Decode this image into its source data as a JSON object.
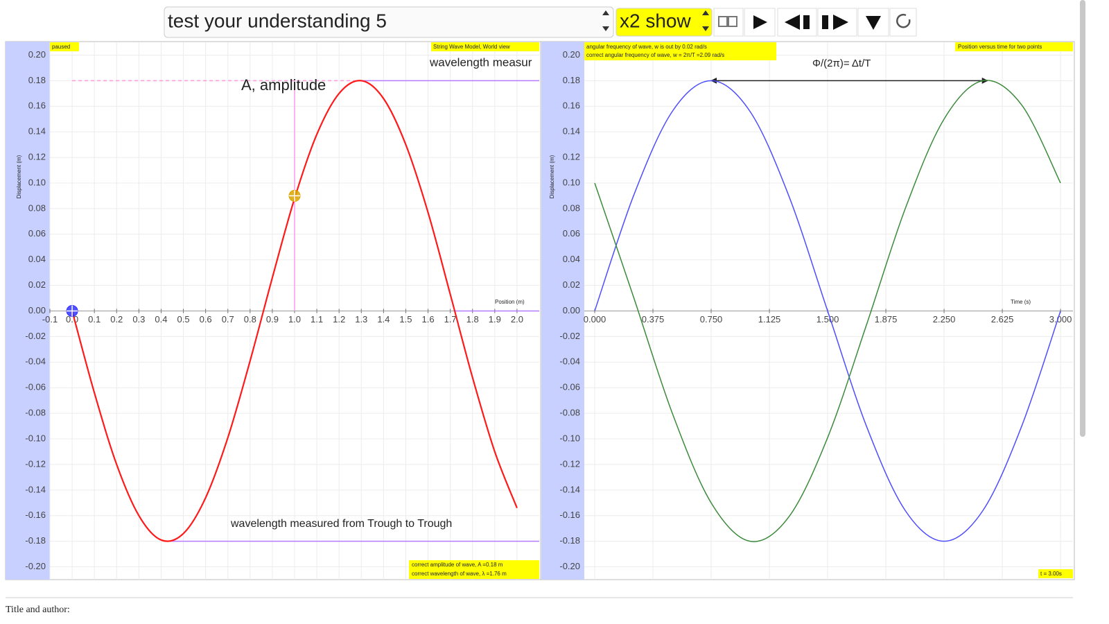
{
  "toolbar": {
    "select": "test your understanding 5",
    "toggle": "x2 show"
  },
  "footer": "Title and author:",
  "chart_data": [
    {
      "type": "line",
      "status": "paused",
      "subtitle": "String Wave Model, World view",
      "xlabel": "Position (m)",
      "ylabel": "Displacement (m)",
      "annotations": [
        "wavelength measur",
        "A, amplitude",
        "wavelength measured from Trough to Trough"
      ],
      "info": [
        "correct amplitude of wave, A =0.18 m",
        "correct wavelength of wave, λ =1.76 m"
      ],
      "xlim": [
        -0.1,
        2.1
      ],
      "ylim": [
        -0.21,
        0.21
      ],
      "grid": true,
      "xticks": [
        -0.1,
        {
          "value": 0,
          "label": "0.0"
        },
        0.1,
        0.2,
        0.3,
        0.4,
        0.5,
        0.6,
        0.7,
        0.8,
        0.9,
        {
          "value": 1,
          "label": "1.0"
        },
        1.1,
        1.2,
        1.3,
        1.4,
        1.5,
        1.6,
        1.7,
        1.8,
        1.9,
        {
          "value": 2,
          "label": "2.0"
        }
      ],
      "yticks": [
        {
          "value": -0.2,
          "label": "-0.20"
        },
        {
          "value": -0.18,
          "label": "-0.18"
        },
        {
          "value": -0.16,
          "label": "-0.16"
        },
        {
          "value": -0.14,
          "label": "-0.14"
        },
        {
          "value": -0.12,
          "label": "-0.12"
        },
        {
          "value": -0.1,
          "label": "-0.10"
        },
        {
          "value": -0.08,
          "label": "-0.08"
        },
        {
          "value": -0.06,
          "label": "-0.06"
        },
        {
          "value": -0.04,
          "label": "-0.04"
        },
        {
          "value": -0.02,
          "label": "-0.02"
        },
        {
          "value": 0,
          "label": "0.00"
        },
        {
          "value": 0.02,
          "label": "0.02"
        },
        {
          "value": 0.04,
          "label": "0.04"
        },
        {
          "value": 0.06,
          "label": "0.06"
        },
        {
          "value": 0.08,
          "label": "0.08"
        },
        {
          "value": 0.1,
          "label": "0.10"
        },
        {
          "value": 0.12,
          "label": "0.12"
        },
        {
          "value": 0.14,
          "label": "0.14"
        },
        {
          "value": 0.16,
          "label": "0.16"
        },
        {
          "value": 0.18,
          "label": "0.18"
        },
        {
          "value": 0.2,
          "label": "0.20"
        }
      ],
      "x": [
        0,
        0.1,
        0.2,
        0.3,
        0.4,
        0.5,
        0.6,
        0.7,
        0.8,
        0.9,
        1.0,
        1.1,
        1.2,
        1.3,
        1.4,
        1.5,
        1.6,
        1.7,
        1.8,
        1.9,
        2.0
      ],
      "series": [
        {
          "color": "#ff1a1a",
          "values": [
            0,
            -0.064,
            -0.12,
            -0.16,
            -0.179,
            -0.174,
            -0.146,
            -0.099,
            -0.039,
            0.026,
            0.088,
            0.138,
            0.17,
            0.18,
            0.166,
            0.13,
            0.077,
            0.013,
            -0.052,
            -0.11,
            -0.154
          ]
        }
      ],
      "markers": [
        {
          "x": 0,
          "y": 0,
          "color": "#3333ff"
        },
        {
          "x": 1.0,
          "y": 0.09,
          "color": "#d9a400"
        }
      ],
      "guides": [
        {
          "x": [
            1.3,
            2.1
          ],
          "y": [
            0.18,
            0.18
          ],
          "color": "#b57bff"
        },
        {
          "x": [
            0.44,
            2.1
          ],
          "y": [
            -0.18,
            -0.18
          ],
          "color": "#b57bff"
        },
        {
          "x": [
            1.72,
            2.1
          ],
          "y": [
            0,
            0
          ],
          "color": "#b57bff"
        },
        {
          "x": [
            0,
            1.3
          ],
          "y": [
            0.18,
            0.18
          ],
          "color": "#ff99dd",
          "dashed": true
        },
        {
          "x": [
            1.0,
            1.0
          ],
          "y": [
            0,
            0.18
          ],
          "color": "#ff99ee"
        }
      ]
    },
    {
      "type": "line",
      "subtitle": "Position versus time for two points",
      "xlabel": "Time (s)",
      "ylabel": "Displacement (m)",
      "annotations": [
        "Φ/(2π)= Δt/T"
      ],
      "info": [
        "angular frequency of wave, w is out by 0.02 rad/s",
        "correct angular frequency of wave, w = 2π/T =2.09 rad/s"
      ],
      "time_label": "t = 3.00s",
      "xlim": [
        -0.067,
        3.08
      ],
      "ylim": [
        -0.21,
        0.21
      ],
      "grid": true,
      "xticks": [
        {
          "value": 0,
          "label": "0.000"
        },
        {
          "value": 0.375,
          "label": "0.375"
        },
        {
          "value": 0.75,
          "label": "0.750"
        },
        {
          "value": 1.125,
          "label": "1.125"
        },
        {
          "value": 1.5,
          "label": "1.500"
        },
        {
          "value": 1.875,
          "label": "1.875"
        },
        {
          "value": 2.25,
          "label": "2.250"
        },
        {
          "value": 2.625,
          "label": "2.625"
        },
        {
          "value": 3,
          "label": "3.000"
        }
      ],
      "yticks": [
        {
          "value": -0.2,
          "label": "-0.20"
        },
        {
          "value": -0.18,
          "label": "-0.18"
        },
        {
          "value": -0.16,
          "label": "-0.16"
        },
        {
          "value": -0.14,
          "label": "-0.14"
        },
        {
          "value": -0.12,
          "label": "-0.12"
        },
        {
          "value": -0.1,
          "label": "-0.10"
        },
        {
          "value": -0.08,
          "label": "-0.08"
        },
        {
          "value": -0.06,
          "label": "-0.06"
        },
        {
          "value": -0.04,
          "label": "-0.04"
        },
        {
          "value": -0.02,
          "label": "-0.02"
        },
        {
          "value": 0,
          "label": "0.00"
        },
        {
          "value": 0.02,
          "label": "0.02"
        },
        {
          "value": 0.04,
          "label": "0.04"
        },
        {
          "value": 0.06,
          "label": "0.06"
        },
        {
          "value": 0.08,
          "label": "0.08"
        },
        {
          "value": 0.1,
          "label": "0.10"
        },
        {
          "value": 0.12,
          "label": "0.12"
        },
        {
          "value": 0.14,
          "label": "0.14"
        },
        {
          "value": 0.16,
          "label": "0.16"
        },
        {
          "value": 0.18,
          "label": "0.18"
        },
        {
          "value": 0.2,
          "label": "0.20"
        }
      ],
      "x": [
        0,
        0.25,
        0.5,
        0.75,
        1.0,
        1.25,
        1.5,
        1.75,
        2.0,
        2.25,
        2.5,
        2.75,
        3.0
      ],
      "series": [
        {
          "color": "#4d4dff",
          "values": [
            0,
            0.09,
            0.156,
            0.18,
            0.156,
            0.09,
            0,
            -0.09,
            -0.156,
            -0.18,
            -0.156,
            -0.09,
            0
          ]
        },
        {
          "color": "#3a8a3a",
          "values": [
            0.1,
            0.011,
            -0.08,
            -0.15,
            -0.18,
            -0.161,
            -0.099,
            -0.011,
            0.08,
            0.15,
            0.18,
            0.161,
            0.1
          ]
        }
      ],
      "guides": [
        {
          "x": [
            0.75,
            2.53
          ],
          "y": [
            0.18,
            0.18
          ],
          "color": "#222222",
          "arrow": true
        }
      ]
    }
  ]
}
